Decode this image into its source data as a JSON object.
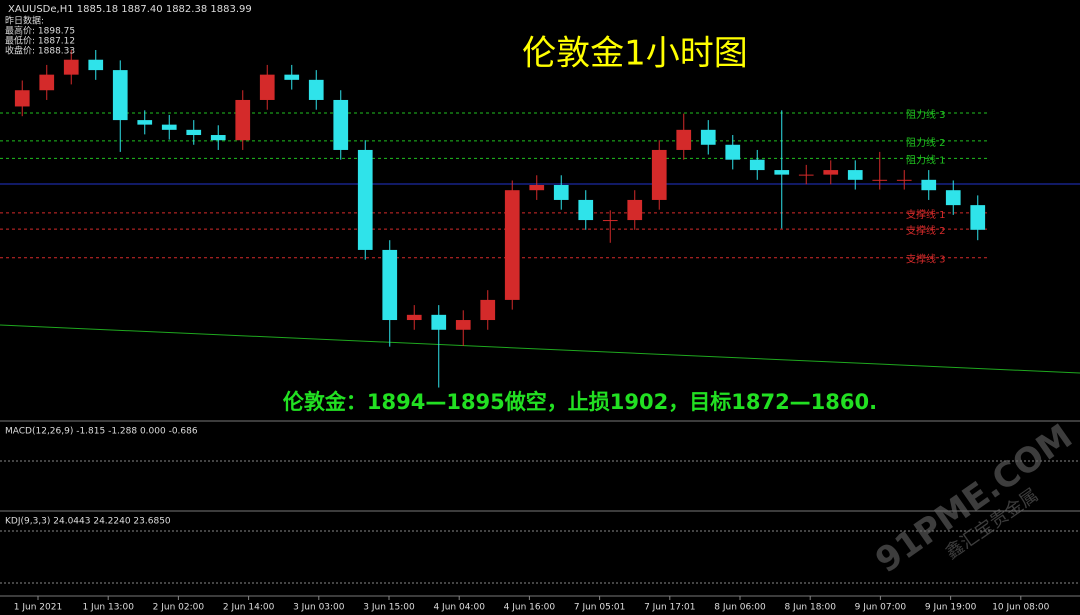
{
  "chart_data": {
    "type": "candlestick",
    "symbol_header": "XAUUSDe,H1 1885.18 1887.40 1882.38 1883.99",
    "info_lines": [
      "昨日数据:",
      "最高价: 1898.75",
      "最低价: 1887.12",
      "收盘价: 1888.33"
    ],
    "title": "伦敦金1小时图",
    "annotation": "伦敦金：1894—1895做空，止损1902，目标1872—1860.",
    "up_color": "#d42a2a",
    "down_color": "#2fe3ea",
    "ylim": [
      1854.7,
      1919.4
    ],
    "open": [
      1903,
      1905.5,
      1907.9,
      1910.2,
      1908.6,
      1900.9,
      1900.2,
      1899.4,
      1898.6,
      1897.8,
      1904.0,
      1907.9,
      1907.1,
      1904.0,
      1896.3,
      1880.9,
      1870.1,
      1870.9,
      1868.6,
      1870.1,
      1873.2,
      1890.1,
      1890.9,
      1888.6,
      1885.5,
      1885.5,
      1888.6,
      1896.3,
      1899.4,
      1897.1,
      1894.8,
      1893.2,
      1892.5,
      1892.5,
      1893.2,
      1891.7,
      1891.7,
      1891.7,
      1890.1,
      1887.8
    ],
    "high": [
      1907,
      1909.4,
      1911.7,
      1911.7,
      1910.1,
      1902.4,
      1901.7,
      1900.9,
      1900.1,
      1905.5,
      1909.4,
      1909.4,
      1908.6,
      1905.5,
      1897.8,
      1882.4,
      1872.4,
      1872.4,
      1871.6,
      1874.7,
      1891.6,
      1892.4,
      1892.4,
      1890.1,
      1887,
      1890.1,
      1897.8,
      1901.9,
      1900.9,
      1898.6,
      1896.3,
      1902.4,
      1894,
      1894.7,
      1894.7,
      1896,
      1893.2,
      1893.2,
      1891.6,
      1889.3
    ],
    "low": [
      1901.5,
      1904,
      1906.4,
      1907.1,
      1896,
      1898.7,
      1897.9,
      1897.1,
      1896.3,
      1896.3,
      1902.5,
      1905.6,
      1902.5,
      1894.8,
      1879.4,
      1866,
      1868.6,
      1859.7,
      1866.1,
      1868.6,
      1871.7,
      1888.6,
      1887.1,
      1884,
      1882,
      1884,
      1887.1,
      1894.8,
      1895.6,
      1893.3,
      1891.7,
      1884.2,
      1891,
      1891,
      1890.2,
      1890.2,
      1890.2,
      1888.6,
      1886.3,
      1882.4
    ],
    "close": [
      1905.5,
      1907.9,
      1910.2,
      1908.6,
      1900.9,
      1900.2,
      1899.4,
      1898.6,
      1897.8,
      1904.0,
      1907.9,
      1907.1,
      1904.0,
      1896.3,
      1880.9,
      1870.1,
      1870.9,
      1868.6,
      1870.1,
      1873.2,
      1890.1,
      1890.9,
      1888.6,
      1885.5,
      1885.5,
      1888.6,
      1896.3,
      1899.4,
      1897.1,
      1894.8,
      1893.2,
      1892.5,
      1892.5,
      1893.2,
      1891.7,
      1891.7,
      1891.7,
      1890.1,
      1887.8,
      1884.0
    ],
    "levels": [
      {
        "label": "阻力线 3",
        "value": 1902,
        "color": "#1fbf1f"
      },
      {
        "label": "阻力线 2",
        "value": 1897.7,
        "color": "#1fbf1f"
      },
      {
        "label": "阻力线 1",
        "value": 1895,
        "color": "#1fbf1f"
      },
      {
        "label": "支撑线 1",
        "value": 1886.6,
        "color": "#d42a2a"
      },
      {
        "label": "支撑线 2",
        "value": 1884.1,
        "color": "#d42a2a"
      },
      {
        "label": "支撑线 3",
        "value": 1879.7,
        "color": "#d42a2a"
      }
    ],
    "macd_header": "MACD(12,26,9) -1.815 -1.288 0.000 -0.686",
    "kdj_header": "KDJ(9,3,3) 24.0443 24.2240 23.6850",
    "x_labels": [
      "1 Jun 2021",
      "1 Jun 13:00",
      "2 Jun 02:00",
      "2 Jun 14:00",
      "3 Jun 03:00",
      "3 Jun 15:00",
      "4 Jun 04:00",
      "4 Jun 16:00",
      "7 Jun 05:01",
      "7 Jun 17:01",
      "8 Jun 06:00",
      "8 Jun 18:00",
      "9 Jun 07:00",
      "9 Jun 19:00",
      "10 Jun 08:00"
    ],
    "watermark": "91PME.COM",
    "watermark_sub": "鑫汇宝贵金属"
  }
}
